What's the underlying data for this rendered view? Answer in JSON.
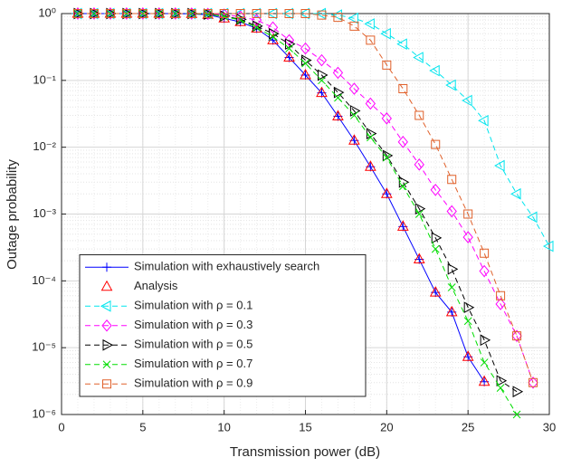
{
  "chart_data": {
    "type": "line",
    "xlabel": "Transmission power (dB)",
    "ylabel": "Outage probability",
    "x": [
      1,
      2,
      3,
      4,
      5,
      6,
      7,
      8,
      9,
      10,
      11,
      12,
      13,
      14,
      15,
      16,
      17,
      18,
      19,
      20,
      21,
      22,
      23,
      24,
      25,
      26,
      27,
      28,
      29,
      30
    ],
    "xlim": [
      0,
      30
    ],
    "xticks": [
      0,
      5,
      10,
      15,
      20,
      25,
      30
    ],
    "ylim": [
      1e-06,
      1
    ],
    "log_y": true,
    "grid": true,
    "legend": "lower left",
    "yticks": [
      {
        "value": 1,
        "label": "10⁰"
      },
      {
        "value": 0.1,
        "label": "10⁻¹"
      },
      {
        "value": 0.01,
        "label": "10⁻²"
      },
      {
        "value": 0.001,
        "label": "10⁻³"
      },
      {
        "value": 0.0001,
        "label": "10⁻⁴"
      },
      {
        "value": 1e-05,
        "label": "10⁻⁵"
      },
      {
        "value": 1e-06,
        "label": "10⁻⁶"
      }
    ],
    "series": [
      {
        "name": "Simulation with exhaustively search",
        "color": "#0000ff",
        "marker": "+",
        "linestyle": "solid",
        "values": [
          1,
          1,
          1,
          1,
          1,
          1,
          1,
          0.99,
          0.96,
          0.85,
          0.75,
          0.6,
          0.4,
          0.22,
          0.12,
          0.065,
          0.029,
          0.0126,
          0.0051,
          0.002,
          0.00065,
          0.00021,
          6.7e-05,
          3.4e-05,
          7.3e-06,
          3.1e-06,
          null,
          null,
          null,
          null
        ]
      },
      {
        "name": "Analysis",
        "color": "#ff0000",
        "marker": "^",
        "linestyle": "none",
        "values": [
          1,
          1,
          1,
          1,
          1,
          1,
          1,
          0.99,
          0.96,
          0.85,
          0.75,
          0.6,
          0.4,
          0.22,
          0.12,
          0.065,
          0.029,
          0.0126,
          0.0051,
          0.002,
          0.00065,
          0.00021,
          6.7e-05,
          3.4e-05,
          7.3e-06,
          3.1e-06,
          null,
          null,
          null,
          null
        ]
      },
      {
        "name": "Simulation with ρ = 0.1",
        "color": "#00e5ee",
        "marker": "<",
        "linestyle": "dashed",
        "values": [
          1,
          1,
          1,
          1,
          1,
          1,
          1,
          1,
          1,
          1,
          1,
          1,
          1,
          1,
          1,
          1,
          0.95,
          0.85,
          0.7,
          0.5,
          0.35,
          0.22,
          0.14,
          0.085,
          0.05,
          0.025,
          0.0053,
          0.002,
          0.0009,
          0.00033
        ]
      },
      {
        "name": "Simulation with ρ = 0.3",
        "color": "#ff00ff",
        "marker": "d",
        "linestyle": "dashed",
        "values": [
          1,
          1,
          1,
          1,
          1,
          1,
          1,
          1,
          0.99,
          0.97,
          0.9,
          0.8,
          0.62,
          0.4,
          0.3,
          0.2,
          0.13,
          0.075,
          0.045,
          0.027,
          0.012,
          0.0055,
          0.0023,
          0.0011,
          0.00045,
          0.00014,
          4.5e-05,
          1.5e-05,
          3e-06,
          null
        ]
      },
      {
        "name": "Simulation with ρ = 0.5",
        "color": "#000000",
        "marker": ">",
        "linestyle": "dashed",
        "values": [
          1,
          1,
          1,
          1,
          1,
          1,
          1,
          1,
          0.98,
          0.92,
          0.82,
          0.65,
          0.5,
          0.35,
          0.2,
          0.12,
          0.066,
          0.035,
          0.016,
          0.0075,
          0.003,
          0.0012,
          0.00044,
          0.00015,
          4e-05,
          1.3e-05,
          3.2e-06,
          2.2e-06,
          null,
          null
        ]
      },
      {
        "name": "Simulation with ρ = 0.7",
        "color": "#00dd00",
        "marker": "x",
        "linestyle": "dashed",
        "values": [
          1,
          1,
          1,
          1,
          1,
          1,
          1,
          1,
          0.98,
          0.9,
          0.8,
          0.62,
          0.45,
          0.3,
          0.18,
          0.1,
          0.055,
          0.03,
          0.014,
          0.007,
          0.0026,
          0.001,
          0.0003,
          8e-05,
          2.5e-05,
          6e-06,
          2.5e-06,
          1e-06,
          null,
          null
        ]
      },
      {
        "name": "Simulation with ρ = 0.9",
        "color": "#e0602a",
        "marker": "s",
        "linestyle": "dashed",
        "values": [
          1,
          1,
          1,
          1,
          1,
          1,
          1,
          1,
          1,
          1,
          1,
          1,
          1,
          1,
          1,
          0.95,
          0.88,
          0.65,
          0.4,
          0.17,
          0.075,
          0.03,
          0.011,
          0.0033,
          0.001,
          0.00026,
          6e-05,
          1.5e-05,
          3e-06,
          null
        ]
      }
    ]
  }
}
